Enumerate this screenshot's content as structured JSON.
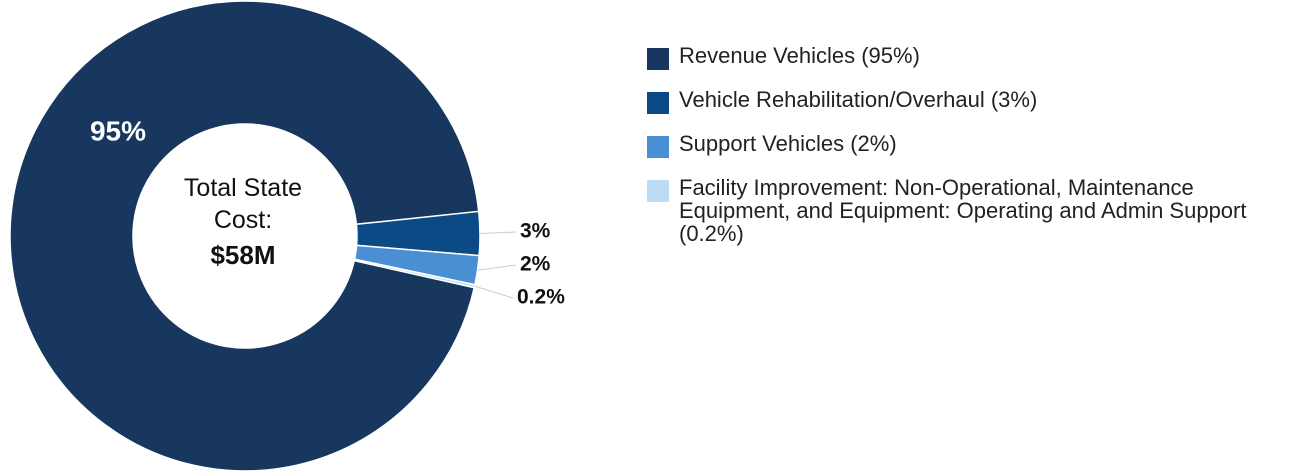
{
  "chart_data": {
    "type": "donut",
    "categories": [
      "Revenue Vehicles (95%)",
      "Vehicle Rehabilitation/Overhaul (3%)",
      "Support Vehicles (2%)",
      "Facility Improvement: Non-Operational, Maintenance Equipment, and Equipment: Operating and Admin Support (0.2%)"
    ],
    "values": [
      95,
      3,
      2,
      0.2
    ],
    "value_labels": [
      "95%",
      "3%",
      "2%",
      "0.2%"
    ],
    "colors": [
      "#17375e",
      "#0c4a85",
      "#4a8fd4",
      "#bcdcf5"
    ],
    "center_label": "Total State Cost:",
    "center_value": "$58M",
    "legend": "right"
  }
}
